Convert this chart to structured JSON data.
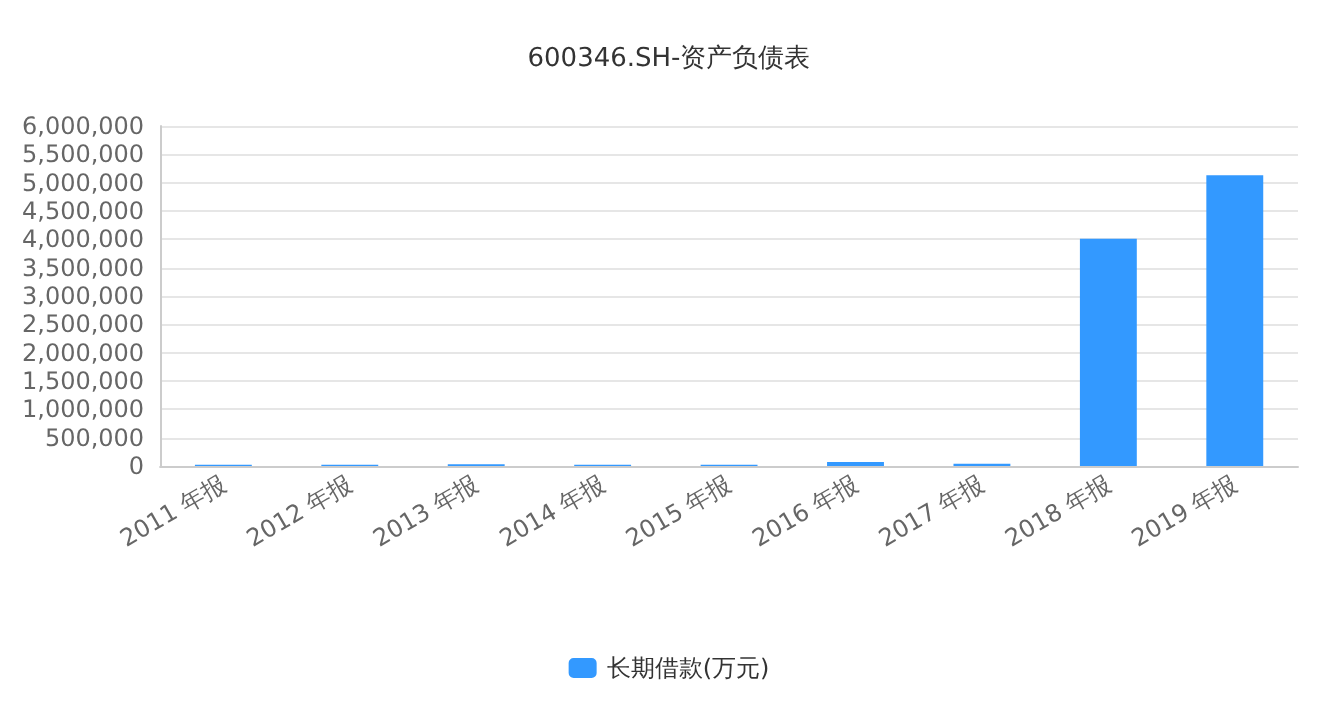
{
  "chart_data": {
    "type": "bar",
    "title": "600346.SH-资产负债表",
    "categories": [
      "2011 年报",
      "2012 年报",
      "2013 年报",
      "2014 年报",
      "2015 年报",
      "2016 年报",
      "2017 年报",
      "2018 年报",
      "2019 年报"
    ],
    "series": [
      {
        "name": "长期借款(万元)",
        "color": "#3399ff",
        "values": [
          20000,
          20000,
          30000,
          20000,
          20000,
          70000,
          40000,
          4010000,
          5130000
        ]
      }
    ],
    "ylim": [
      0,
      6000000
    ],
    "yticks": [
      0,
      {
        "value": 500000,
        "label": "500,000"
      },
      {
        "value": 1000000,
        "label": "1,000,000"
      },
      {
        "value": 1500000,
        "label": "1,500,000"
      },
      {
        "value": 2000000,
        "label": "2,000,000"
      },
      {
        "value": 2500000,
        "label": "2,500,000"
      },
      {
        "value": 3000000,
        "label": "3,000,000"
      },
      {
        "value": 3500000,
        "label": "3,500,000"
      },
      {
        "value": 4000000,
        "label": "4,000,000"
      },
      {
        "value": 4500000,
        "label": "4,500,000"
      },
      {
        "value": 5000000,
        "label": "5,000,000"
      },
      {
        "value": 5500000,
        "label": "5,500,000"
      },
      {
        "value": 6000000,
        "label": "6,000,000"
      }
    ],
    "grid": "y",
    "legend": "bottom"
  }
}
